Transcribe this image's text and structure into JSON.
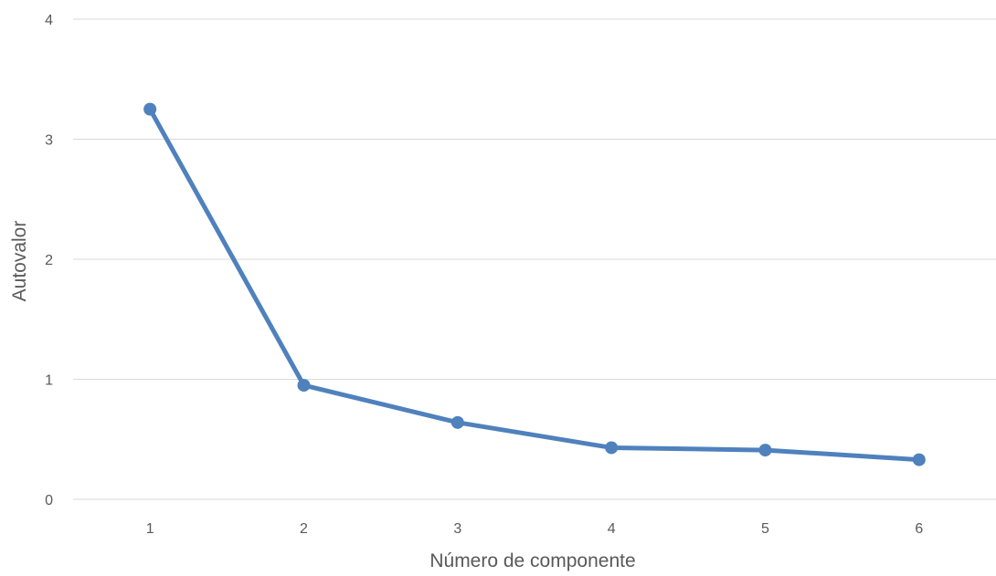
{
  "chart_data": {
    "type": "line",
    "title": "",
    "xlabel": "Número de componente",
    "ylabel": "Autovalor",
    "categories": [
      "1",
      "2",
      "3",
      "4",
      "5",
      "6"
    ],
    "series": [
      {
        "values": [
          3.25,
          0.95,
          0.64,
          0.43,
          0.41,
          0.33
        ],
        "color": "#4f81bd"
      }
    ],
    "yticks": [
      "0",
      "1",
      "2",
      "3",
      "4"
    ],
    "ylim": [
      0,
      4
    ],
    "grid": "horizontal",
    "legend": "none",
    "markers": "circle"
  }
}
